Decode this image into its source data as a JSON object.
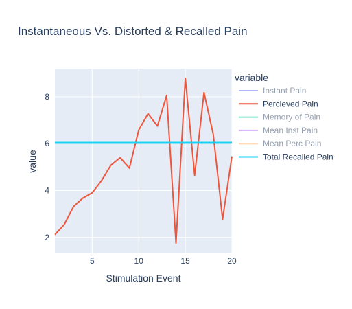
{
  "chart_data": {
    "type": "line",
    "title": "Instantaneous Vs. Distorted & Recalled Pain",
    "xlabel": "Stimulation Event",
    "ylabel": "value",
    "xlim": [
      1,
      20
    ],
    "ylim": [
      1.35,
      9.2
    ],
    "xticks": [
      5,
      10,
      15,
      20
    ],
    "yticks": [
      2,
      4,
      6,
      8
    ],
    "grid": true,
    "legend": {
      "title": "variable",
      "placement": "right",
      "entries": [
        {
          "name": "Instant Pain",
          "color": "#636efa",
          "visible": false
        },
        {
          "name": "Percieved Pain",
          "color": "#ef553b",
          "visible": true
        },
        {
          "name": "Memory of Pain",
          "color": "#00cc96",
          "visible": false
        },
        {
          "name": "Mean Inst Pain",
          "color": "#ab63fa",
          "visible": false
        },
        {
          "name": "Mean Perc Pain",
          "color": "#ffa15a",
          "visible": false
        },
        {
          "name": "Total Recalled Pain",
          "color": "#19d3f3",
          "visible": true
        }
      ]
    },
    "series": [
      {
        "name": "Percieved Pain",
        "color": "#ef553b",
        "x": [
          1,
          2,
          3,
          4,
          5,
          6,
          7,
          8,
          9,
          10,
          11,
          12,
          13,
          14,
          15,
          16,
          17,
          18,
          19,
          20
        ],
        "values": [
          2.12,
          2.55,
          3.32,
          3.68,
          3.9,
          4.42,
          5.08,
          5.4,
          4.96,
          6.58,
          7.28,
          6.75,
          8.06,
          1.75,
          8.78,
          4.65,
          8.18,
          6.4,
          2.78,
          5.46
        ]
      },
      {
        "name": "Total Recalled Pain",
        "color": "#19d3f3",
        "x": [
          1,
          20
        ],
        "values": [
          6.05,
          6.05
        ]
      }
    ]
  }
}
